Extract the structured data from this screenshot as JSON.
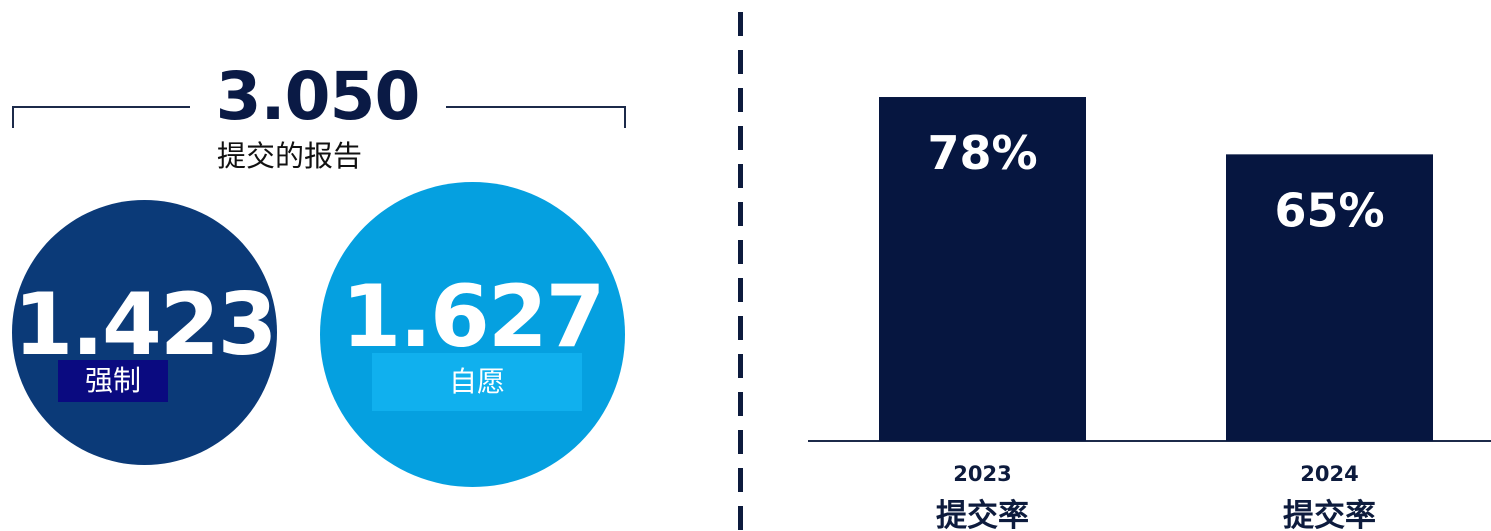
{
  "summary": {
    "total_value": "3.050",
    "total_label": "提交的报告",
    "mandatory": {
      "value": "1.423",
      "label": "强制"
    },
    "voluntary": {
      "value": "1.627",
      "label": "自愿"
    }
  },
  "colors": {
    "navy": "#0a1a45",
    "mandatory_circle": "#0b3a78",
    "mandatory_label": "#0a0a80",
    "voluntary_circle": "#05a0e0",
    "voluntary_label": "#10b0ee",
    "bar": "#061640"
  },
  "chart_data": {
    "type": "bar",
    "categories": [
      "2023",
      "2024"
    ],
    "category_sublabels": [
      "提交率",
      "提交率"
    ],
    "values": [
      78,
      65
    ],
    "value_labels": [
      "78%",
      "65%"
    ],
    "ylim": [
      0,
      100
    ],
    "grid": false
  }
}
